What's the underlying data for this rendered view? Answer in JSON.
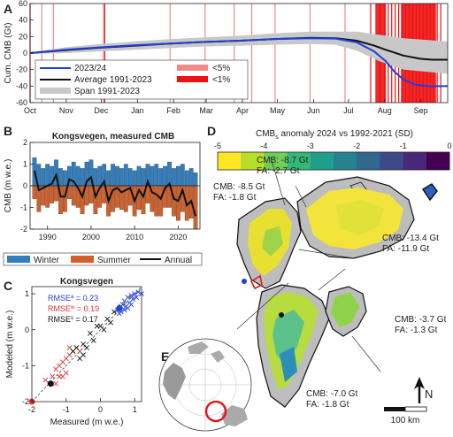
{
  "panels": {
    "a": "A",
    "b": "B",
    "c": "C",
    "d": "D",
    "e": "E"
  },
  "colors": {
    "blue": "#1f3fd6",
    "black": "#111111",
    "span": "#c8c8c8",
    "red5": "#f08a8a",
    "red1": "#ee1111",
    "winter": "#2f7fc1",
    "summer": "#d2602a",
    "model_red": "#e03030"
  },
  "chart_data": [
    {
      "id": "A",
      "type": "line",
      "ylabel": "Cum. CMB (Gt)",
      "ylim": [
        -60,
        60
      ],
      "yticks": [
        -60,
        -40,
        -20,
        0,
        20,
        40,
        60
      ],
      "xlim": [
        0,
        358
      ],
      "xticks": [
        {
          "label": "Oct",
          "d": 0
        },
        {
          "label": "Nov",
          "d": 31
        },
        {
          "label": "Dec",
          "d": 61
        },
        {
          "label": "Jan",
          "d": 92
        },
        {
          "label": "Feb",
          "d": 123
        },
        {
          "label": "Mar",
          "d": 151
        },
        {
          "label": "Apr",
          "d": 182
        },
        {
          "label": "May",
          "d": 212
        },
        {
          "label": "Jun",
          "d": 243
        },
        {
          "label": "Jul",
          "d": 273
        },
        {
          "label": "Aug",
          "d": 304
        },
        {
          "label": "Sep",
          "d": 335
        }
      ],
      "legend": [
        "2023/24",
        "Average 1991-2023",
        "Span 1991-2023",
        "<5%",
        "<1%"
      ],
      "series": [
        {
          "name": "2023/24",
          "x": [
            0,
            30,
            60,
            90,
            120,
            150,
            180,
            210,
            240,
            262,
            280,
            295,
            305,
            312,
            320,
            330,
            340,
            350,
            358
          ],
          "y": [
            0,
            4,
            7,
            9.5,
            11.5,
            13.5,
            15,
            17,
            18,
            17.5,
            13,
            2,
            -10,
            -22,
            -32,
            -38,
            -40,
            -40,
            -40
          ]
        },
        {
          "name": "Average 1991-2023",
          "x": [
            0,
            30,
            60,
            90,
            120,
            150,
            180,
            210,
            240,
            262,
            280,
            295,
            305,
            320,
            335,
            345,
            358
          ],
          "y": [
            0,
            3.5,
            6.5,
            9,
            11.5,
            13.5,
            15,
            17,
            18.5,
            18,
            15,
            9,
            4,
            -3,
            -7,
            -8,
            -8
          ]
        },
        {
          "name": "Span 1991-2023 upper",
          "x": [
            0,
            30,
            60,
            90,
            120,
            150,
            180,
            210,
            240,
            262,
            280,
            300,
            320,
            358
          ],
          "y": [
            1,
            7,
            11,
            14,
            17,
            19,
            21,
            24,
            26,
            26,
            26,
            22,
            18,
            14
          ]
        },
        {
          "name": "Span 1991-2023 lower",
          "x": [
            0,
            30,
            60,
            90,
            120,
            150,
            180,
            210,
            240,
            262,
            280,
            300,
            320,
            358
          ],
          "y": [
            -1,
            0,
            2,
            4,
            6,
            8,
            9,
            10,
            11,
            10,
            3,
            -10,
            -20,
            -25
          ]
        }
      ],
      "lines_5pct": [
        10,
        20,
        63,
        120,
        150,
        175,
        190,
        210,
        240,
        270
      ],
      "lines_1pct": [
        0,
        64,
        292,
        300,
        304,
        307,
        310,
        313,
        316,
        319,
        322,
        325,
        328,
        331,
        334,
        337,
        340,
        343,
        346,
        349,
        352
      ],
      "bands_1pct": [
        [
          296,
          305
        ],
        [
          318,
          348
        ]
      ]
    },
    {
      "id": "B",
      "type": "bar",
      "title": "Kongsvegen, measured CMB",
      "ylabel": "CMB (m w.e.)",
      "ylim": [
        -2,
        2
      ],
      "yticks": [
        -2,
        -1,
        0,
        1,
        2
      ],
      "xlim": [
        1986,
        2025
      ],
      "xticks": [
        1990,
        2000,
        2010,
        2020
      ],
      "legend": [
        "Winter",
        "Summer",
        "Annual"
      ],
      "years": [
        1987,
        1988,
        1989,
        1990,
        1991,
        1992,
        1993,
        1994,
        1995,
        1996,
        1997,
        1998,
        1999,
        2000,
        2001,
        2002,
        2003,
        2004,
        2005,
        2006,
        2007,
        2008,
        2009,
        2010,
        2011,
        2012,
        2013,
        2014,
        2015,
        2016,
        2017,
        2018,
        2019,
        2020,
        2021,
        2022,
        2023,
        2024
      ],
      "winter": [
        1.3,
        1.0,
        0.8,
        1.0,
        0.9,
        1.2,
        0.8,
        0.7,
        0.9,
        1.1,
        0.9,
        0.8,
        1.1,
        1.2,
        0.8,
        0.9,
        1.0,
        0.7,
        1.0,
        0.9,
        0.8,
        1.0,
        0.8,
        0.7,
        0.9,
        0.8,
        1.0,
        0.9,
        1.0,
        0.8,
        0.9,
        1.1,
        0.8,
        0.9,
        1.0,
        0.7,
        0.8,
        0.6
      ],
      "summer": [
        -0.6,
        -1.2,
        -0.9,
        -1.0,
        -0.8,
        -0.7,
        -1.3,
        -1.2,
        -0.6,
        -0.9,
        -1.0,
        -1.3,
        -0.9,
        -0.8,
        -1.3,
        -1.0,
        -0.8,
        -1.4,
        -1.2,
        -1.0,
        -1.1,
        -1.2,
        -0.9,
        -1.4,
        -1.1,
        -1.3,
        -0.8,
        -1.2,
        -1.4,
        -1.4,
        -1.0,
        -1.0,
        -1.4,
        -1.6,
        -1.2,
        -1.6,
        -1.5,
        -2.0
      ],
      "annual": [
        0.7,
        -0.2,
        -0.1,
        0.0,
        0.1,
        0.5,
        -0.5,
        -0.5,
        0.3,
        0.2,
        -0.1,
        -0.5,
        0.2,
        0.4,
        -0.5,
        -0.1,
        0.2,
        -0.7,
        -0.2,
        -0.1,
        -0.3,
        -0.2,
        -0.1,
        -0.7,
        -0.2,
        -0.5,
        0.2,
        -0.3,
        -0.4,
        -0.6,
        -0.1,
        0.1,
        -0.6,
        -0.7,
        -0.2,
        -0.9,
        -0.7,
        -1.4
      ]
    },
    {
      "id": "C",
      "type": "scatter",
      "title": "Kongsvegen",
      "xlabel": "Measured (m w.e.)",
      "ylabel": "Modeled (m w.e.)",
      "xlim": [
        -2,
        1.2
      ],
      "ylim": [
        -2,
        1.2
      ],
      "xticks": [
        -2,
        -1,
        0,
        1
      ],
      "yticks": [
        -2,
        -1,
        0,
        1
      ],
      "rmse": [
        {
          "label": "RMSE",
          "sub": "a",
          "value": "= 0.23",
          "color": "#1f3fd6"
        },
        {
          "label": "RMSE",
          "sub": "w",
          "value": "= 0.19",
          "color": "#e03030"
        },
        {
          "label": "RMSE",
          "sub": "s",
          "value": "= 0.17",
          "color": "#111111"
        }
      ],
      "blue": [
        [
          0.5,
          0.55
        ],
        [
          0.6,
          0.5
        ],
        [
          0.65,
          0.7
        ],
        [
          0.7,
          0.8
        ],
        [
          0.75,
          0.65
        ],
        [
          0.8,
          0.9
        ],
        [
          0.85,
          0.75
        ],
        [
          0.9,
          0.95
        ],
        [
          0.95,
          0.85
        ],
        [
          1.0,
          1.0
        ],
        [
          1.05,
          0.9
        ],
        [
          0.7,
          0.55
        ],
        [
          0.6,
          0.65
        ],
        [
          0.9,
          0.7
        ],
        [
          1.1,
          1.05
        ],
        [
          0.55,
          0.45
        ],
        [
          0.8,
          0.6
        ],
        [
          1.2,
          1.0
        ]
      ],
      "red": [
        [
          -1.4,
          -1.3
        ],
        [
          -1.3,
          -1.1
        ],
        [
          -1.2,
          -1.0
        ],
        [
          -1.1,
          -0.9
        ],
        [
          -1.0,
          -1.2
        ],
        [
          -0.9,
          -0.7
        ],
        [
          -0.8,
          -0.6
        ],
        [
          -1.5,
          -1.5
        ],
        [
          -1.6,
          -1.4
        ],
        [
          -1.2,
          -1.3
        ],
        [
          -0.7,
          -0.5
        ],
        [
          -1.0,
          -0.8
        ],
        [
          -1.3,
          -1.5
        ],
        [
          -0.6,
          -0.6
        ],
        [
          -1.1,
          -1.3
        ],
        [
          -0.9,
          -0.5
        ]
      ],
      "black": [
        [
          -0.7,
          -0.5
        ],
        [
          -0.5,
          -0.4
        ],
        [
          -0.3,
          -0.1
        ],
        [
          -0.2,
          -0.3
        ],
        [
          0.0,
          0.1
        ],
        [
          0.1,
          0.0
        ],
        [
          0.3,
          0.2
        ],
        [
          -0.6,
          -0.8
        ],
        [
          -0.4,
          -0.5
        ],
        [
          -0.1,
          0.1
        ],
        [
          0.2,
          0.3
        ],
        [
          -0.8,
          -0.6
        ],
        [
          0.4,
          0.5
        ],
        [
          -0.5,
          -0.7
        ]
      ],
      "filled": [
        [
          -2.0,
          -2.0
        ],
        [
          -1.45,
          -1.5
        ],
        [
          0.55,
          0.6
        ]
      ]
    }
  ],
  "map": {
    "colorbar_title": "CMB",
    "colorbar_sub": "s",
    "colorbar_rest": " anomaly 2024 vs 1992-2021 (SD)",
    "cbar_ticks": [
      "-5",
      "-4",
      "-3",
      "-2",
      "-1",
      "0"
    ],
    "regions": [
      {
        "cmb": "CMB: -8.7 Gt",
        "fa": "FA: -2.7 Gt"
      },
      {
        "cmb": "CMB: -8.5 Gt",
        "fa": "FA: -1.8 Gt"
      },
      {
        "cmb": "CMB: -13.4 Gt",
        "fa": "FA: -11.9 Gt"
      },
      {
        "cmb": "CMB: -3.7 Gt",
        "fa": "FA: -1.3 Gt"
      },
      {
        "cmb": "CMB: -7.0 Gt",
        "fa": "FA: -1.8 Gt"
      }
    ],
    "north": "N",
    "scale": "100 km"
  }
}
